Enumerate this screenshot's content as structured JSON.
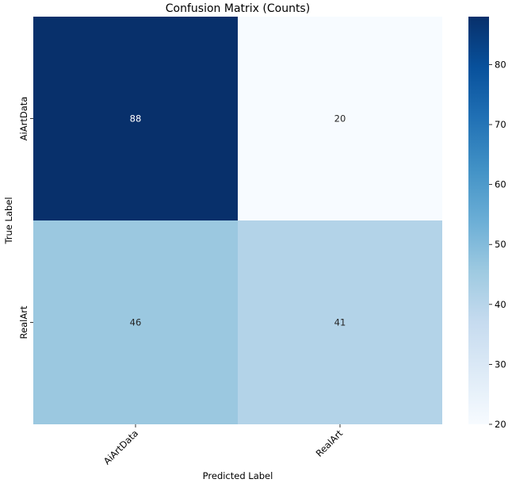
{
  "chart_data": {
    "type": "heatmap",
    "title": "Confusion Matrix (Counts)",
    "xlabel": "Predicted Label",
    "ylabel": "True Label",
    "x_categories": [
      "AiArtData",
      "RealArt"
    ],
    "y_categories": [
      "AiArtData",
      "RealArt"
    ],
    "values": [
      [
        88,
        20
      ],
      [
        46,
        41
      ]
    ],
    "colormap": "Blues",
    "colorbar": {
      "range": [
        20,
        88
      ],
      "ticks": [
        20,
        30,
        40,
        50,
        60,
        70,
        80
      ]
    },
    "x_tick_rotation": 45,
    "grid": false,
    "colors": {
      "light": "#f7fbff",
      "dark": "#08306b"
    }
  }
}
